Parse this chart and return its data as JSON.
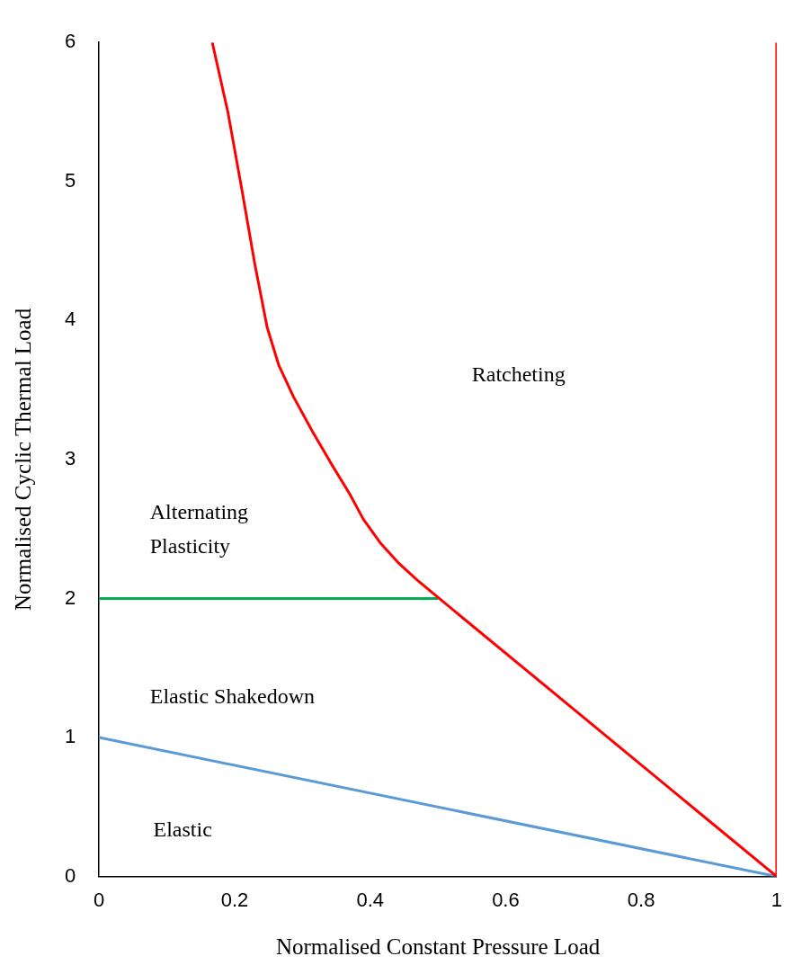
{
  "chart_data": {
    "type": "line",
    "xlabel": "Normalised Constant Pressure Load",
    "ylabel": "Normalised Cyclic Thermal Load",
    "series": [
      {
        "color": "#ff0000",
        "x": [
          0.167,
          0.19,
          0.21,
          0.23,
          0.248,
          0.265,
          0.287,
          0.315,
          0.345,
          0.37,
          0.39,
          0.415,
          0.441,
          0.47,
          0.502,
          1,
          1
        ],
        "values": [
          6,
          5.5,
          4.96,
          4.4,
          3.95,
          3.68,
          3.45,
          3.2,
          2.95,
          2.75,
          2.57,
          2.4,
          2.26,
          2.13,
          2.0,
          0,
          6
        ]
      },
      {
        "color": "#00b050",
        "x": [
          0,
          0.5
        ],
        "values": [
          2,
          2
        ]
      },
      {
        "color": "#5b9bd5",
        "x": [
          0,
          1
        ],
        "values": [
          1,
          0
        ]
      }
    ],
    "annotations": [
      "Ratcheting",
      "Alternating Plasticity",
      "Elastic Shakedown",
      "Elastic"
    ],
    "xlim": [
      0,
      1
    ],
    "ylim": [
      0,
      6
    ],
    "xticks": [
      0,
      0.2,
      0.4,
      0.6,
      0.8,
      1
    ],
    "yticks": [
      0,
      1,
      2,
      3,
      4,
      5,
      6
    ],
    "grid": false,
    "legend": false,
    "marker": "none",
    "line_style": "solid"
  }
}
